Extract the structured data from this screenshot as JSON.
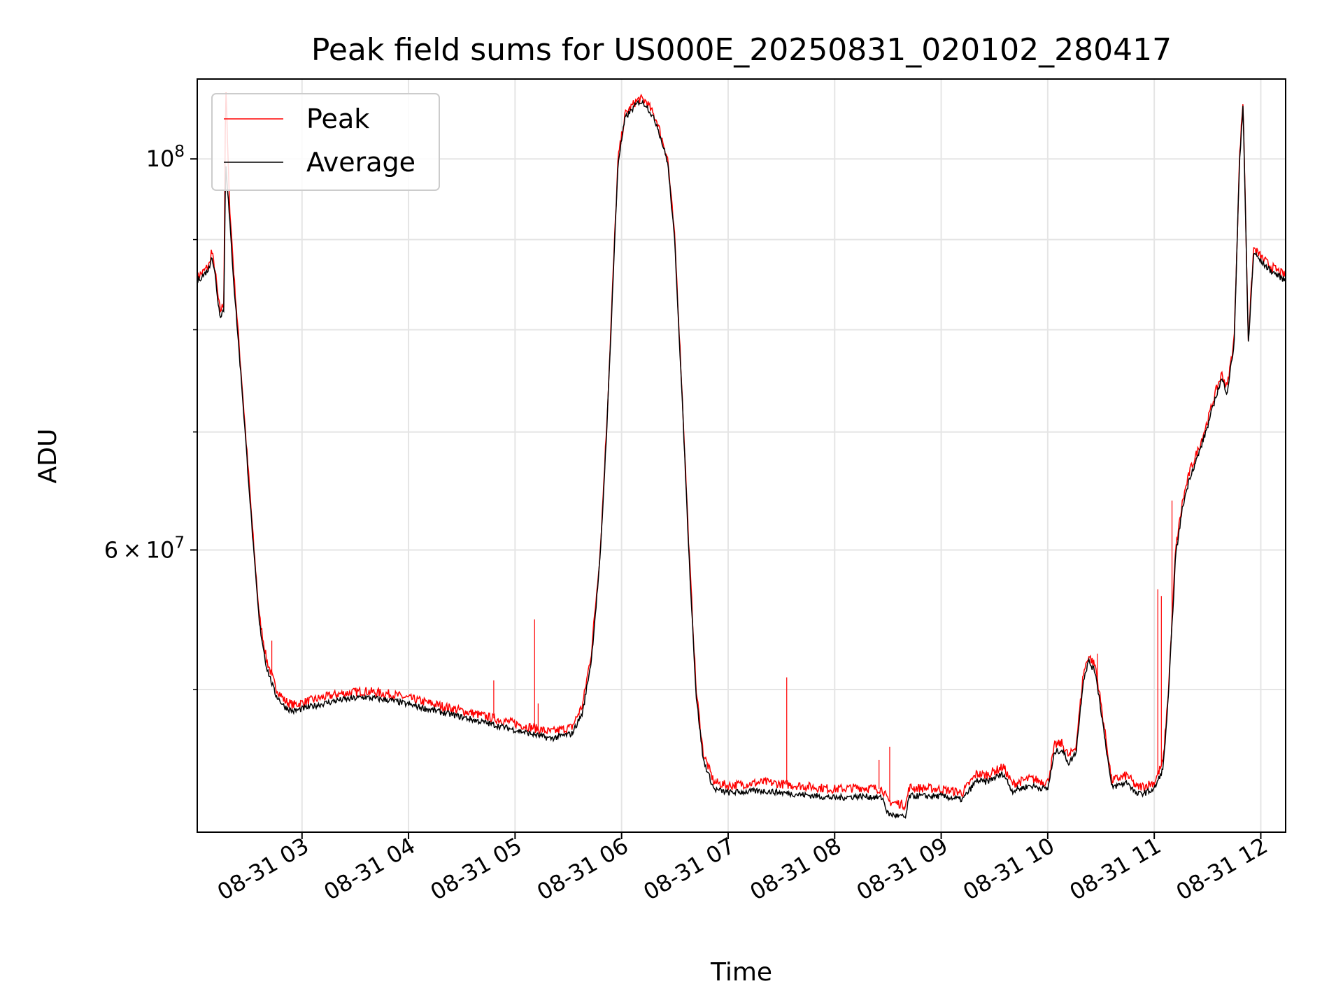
{
  "chart_data": {
    "type": "line",
    "title": "Peak field sums for US000E_20250831_020102_280417",
    "xlabel": "Time",
    "ylabel": "ADU",
    "yscale": "log",
    "ylim": [
      41500000,
      111000000
    ],
    "xlim": [
      "2025-08-31 02:01",
      "2025-08-31 12:14"
    ],
    "grid": true,
    "legend_position": "upper left",
    "x_ticks": [
      {
        "t": "2025-08-31 03:00",
        "label": "08-31 03"
      },
      {
        "t": "2025-08-31 04:00",
        "label": "08-31 04"
      },
      {
        "t": "2025-08-31 05:00",
        "label": "08-31 05"
      },
      {
        "t": "2025-08-31 06:00",
        "label": "08-31 06"
      },
      {
        "t": "2025-08-31 07:00",
        "label": "08-31 07"
      },
      {
        "t": "2025-08-31 08:00",
        "label": "08-31 08"
      },
      {
        "t": "2025-08-31 09:00",
        "label": "08-31 09"
      },
      {
        "t": "2025-08-31 10:00",
        "label": "08-31 10"
      },
      {
        "t": "2025-08-31 11:00",
        "label": "08-31 11"
      },
      {
        "t": "2025-08-31 12:00",
        "label": "08-31 12"
      }
    ],
    "y_ticks": [
      {
        "value": 60000000,
        "mant": "6",
        "times": "×",
        "base": "10",
        "exp": "7"
      },
      {
        "value": 100000000,
        "mant": "",
        "times": "",
        "base": "10",
        "exp": "8"
      }
    ],
    "y_minor_ticks": [
      50000000,
      70000000,
      80000000,
      90000000
    ],
    "series": [
      {
        "name": "Peak",
        "color": "#ff0000",
        "points": [
          [
            "2025-08-31 02:01",
            85700000
          ],
          [
            "2025-08-31 02:05",
            86400000
          ],
          [
            "2025-08-31 02:08",
            87200000
          ],
          [
            "2025-08-31 02:09",
            88800000
          ],
          [
            "2025-08-31 02:11",
            86500000
          ],
          [
            "2025-08-31 02:13",
            83000000
          ],
          [
            "2025-08-31 02:14",
            82000000
          ],
          [
            "2025-08-31 02:16",
            82800000
          ],
          [
            "2025-08-31 02:17",
            111000000
          ],
          [
            "2025-08-31 02:19",
            95000000
          ],
          [
            "2025-08-31 02:22",
            85000000
          ],
          [
            "2025-08-31 02:26",
            75000000
          ],
          [
            "2025-08-31 02:30",
            66000000
          ],
          [
            "2025-08-31 02:33",
            60000000
          ],
          [
            "2025-08-31 02:36",
            55000000
          ],
          [
            "2025-08-31 02:40",
            52000000
          ],
          [
            "2025-08-31 02:45",
            50200000
          ],
          [
            "2025-08-31 02:50",
            49300000
          ],
          [
            "2025-08-31 02:55",
            49000000
          ],
          [
            "2025-08-31 03:05",
            49300000
          ],
          [
            "2025-08-31 03:20",
            49700000
          ],
          [
            "2025-08-31 03:35",
            49900000
          ],
          [
            "2025-08-31 03:50",
            49700000
          ],
          [
            "2025-08-31 04:05",
            49300000
          ],
          [
            "2025-08-31 04:20",
            48900000
          ],
          [
            "2025-08-31 04:35",
            48500000
          ],
          [
            "2025-08-31 04:50",
            48100000
          ],
          [
            "2025-08-31 05:05",
            47700000
          ],
          [
            "2025-08-31 05:20",
            47300000
          ],
          [
            "2025-08-31 05:32",
            47600000
          ],
          [
            "2025-08-31 05:38",
            49000000
          ],
          [
            "2025-08-31 05:43",
            52500000
          ],
          [
            "2025-08-31 05:48",
            60000000
          ],
          [
            "2025-08-31 05:52",
            72000000
          ],
          [
            "2025-08-31 05:55",
            85000000
          ],
          [
            "2025-08-31 05:58",
            100000000
          ],
          [
            "2025-08-31 06:02",
            106000000
          ],
          [
            "2025-08-31 06:07",
            107500000
          ],
          [
            "2025-08-31 06:10",
            108200000
          ],
          [
            "2025-08-31 06:14",
            107800000
          ],
          [
            "2025-08-31 06:20",
            105000000
          ],
          [
            "2025-08-31 06:26",
            100000000
          ],
          [
            "2025-08-31 06:30",
            90000000
          ],
          [
            "2025-08-31 06:34",
            74000000
          ],
          [
            "2025-08-31 06:38",
            60000000
          ],
          [
            "2025-08-31 06:42",
            50000000
          ],
          [
            "2025-08-31 06:46",
            46000000
          ],
          [
            "2025-08-31 06:52",
            44300000
          ],
          [
            "2025-08-31 07:00",
            44100000
          ],
          [
            "2025-08-31 07:20",
            44300000
          ],
          [
            "2025-08-31 07:40",
            44100000
          ],
          [
            "2025-08-31 08:00",
            43900000
          ],
          [
            "2025-08-31 08:15",
            44000000
          ],
          [
            "2025-08-31 08:27",
            43900000
          ],
          [
            "2025-08-31 08:30",
            43200000
          ],
          [
            "2025-08-31 08:40",
            43000000
          ],
          [
            "2025-08-31 08:42",
            44000000
          ],
          [
            "2025-08-31 09:00",
            43900000
          ],
          [
            "2025-08-31 09:12",
            43700000
          ],
          [
            "2025-08-31 09:20",
            44800000
          ],
          [
            "2025-08-31 09:25",
            44700000
          ],
          [
            "2025-08-31 09:35",
            45200000
          ],
          [
            "2025-08-31 09:40",
            44200000
          ],
          [
            "2025-08-31 09:50",
            44500000
          ],
          [
            "2025-08-31 10:00",
            44300000
          ],
          [
            "2025-08-31 10:04",
            46500000
          ],
          [
            "2025-08-31 10:08",
            46600000
          ],
          [
            "2025-08-31 10:12",
            45800000
          ],
          [
            "2025-08-31 10:16",
            46500000
          ],
          [
            "2025-08-31 10:20",
            51000000
          ],
          [
            "2025-08-31 10:23",
            52300000
          ],
          [
            "2025-08-31 10:27",
            51500000
          ],
          [
            "2025-08-31 10:32",
            47500000
          ],
          [
            "2025-08-31 10:36",
            44400000
          ],
          [
            "2025-08-31 10:45",
            44700000
          ],
          [
            "2025-08-31 10:50",
            44000000
          ],
          [
            "2025-08-31 10:55",
            44100000
          ],
          [
            "2025-08-31 11:00",
            44300000
          ],
          [
            "2025-08-31 11:05",
            45500000
          ],
          [
            "2025-08-31 11:08",
            50000000
          ],
          [
            "2025-08-31 11:12",
            60000000
          ],
          [
            "2025-08-31 11:16",
            64000000
          ],
          [
            "2025-08-31 11:20",
            66500000
          ],
          [
            "2025-08-31 11:25",
            68500000
          ],
          [
            "2025-08-31 11:30",
            71000000
          ],
          [
            "2025-08-31 11:35",
            74000000
          ],
          [
            "2025-08-31 11:38",
            75500000
          ],
          [
            "2025-08-31 11:41",
            74200000
          ],
          [
            "2025-08-31 11:45",
            79000000
          ],
          [
            "2025-08-31 11:48",
            100000000
          ],
          [
            "2025-08-31 11:50",
            108000000
          ],
          [
            "2025-08-31 11:53",
            79000000
          ],
          [
            "2025-08-31 11:56",
            89000000
          ],
          [
            "2025-08-31 12:00",
            88000000
          ],
          [
            "2025-08-31 12:05",
            87000000
          ],
          [
            "2025-08-31 12:14",
            85800000
          ]
        ],
        "spikes": [
          [
            "2025-08-31 02:17",
            111000000
          ],
          [
            "2025-08-31 02:43",
            53300000
          ],
          [
            "2025-08-31 04:48",
            50600000
          ],
          [
            "2025-08-31 05:11",
            54800000
          ],
          [
            "2025-08-31 05:13",
            49100000
          ],
          [
            "2025-08-31 07:33",
            50800000
          ],
          [
            "2025-08-31 08:25",
            45600000
          ],
          [
            "2025-08-31 08:31",
            46400000
          ],
          [
            "2025-08-31 10:28",
            52400000
          ],
          [
            "2025-08-31 11:02",
            57000000
          ],
          [
            "2025-08-31 11:04",
            56500000
          ],
          [
            "2025-08-31 11:10",
            64000000
          ]
        ]
      },
      {
        "name": "Average",
        "color": "#000000",
        "points": [
          [
            "2025-08-31 02:01",
            85300000
          ],
          [
            "2025-08-31 02:05",
            86000000
          ],
          [
            "2025-08-31 02:08",
            86800000
          ],
          [
            "2025-08-31 02:09",
            88400000
          ],
          [
            "2025-08-31 02:11",
            86000000
          ],
          [
            "2025-08-31 02:13",
            82500000
          ],
          [
            "2025-08-31 02:14",
            81500000
          ],
          [
            "2025-08-31 02:16",
            82200000
          ],
          [
            "2025-08-31 02:17",
            100000000
          ],
          [
            "2025-08-31 02:19",
            93000000
          ],
          [
            "2025-08-31 02:22",
            84000000
          ],
          [
            "2025-08-31 02:26",
            74500000
          ],
          [
            "2025-08-31 02:30",
            65500000
          ],
          [
            "2025-08-31 02:33",
            59500000
          ],
          [
            "2025-08-31 02:36",
            54500000
          ],
          [
            "2025-08-31 02:40",
            51500000
          ],
          [
            "2025-08-31 02:45",
            49700000
          ],
          [
            "2025-08-31 02:50",
            48900000
          ],
          [
            "2025-08-31 02:55",
            48600000
          ],
          [
            "2025-08-31 03:05",
            48900000
          ],
          [
            "2025-08-31 03:20",
            49300000
          ],
          [
            "2025-08-31 03:35",
            49500000
          ],
          [
            "2025-08-31 03:50",
            49300000
          ],
          [
            "2025-08-31 04:05",
            48900000
          ],
          [
            "2025-08-31 04:20",
            48500000
          ],
          [
            "2025-08-31 04:35",
            48100000
          ],
          [
            "2025-08-31 04:50",
            47700000
          ],
          [
            "2025-08-31 05:05",
            47300000
          ],
          [
            "2025-08-31 05:20",
            46900000
          ],
          [
            "2025-08-31 05:32",
            47200000
          ],
          [
            "2025-08-31 05:38",
            48500000
          ],
          [
            "2025-08-31 05:43",
            52000000
          ],
          [
            "2025-08-31 05:48",
            59500000
          ],
          [
            "2025-08-31 05:52",
            71500000
          ],
          [
            "2025-08-31 05:55",
            84500000
          ],
          [
            "2025-08-31 05:58",
            99500000
          ],
          [
            "2025-08-31 06:02",
            105500000
          ],
          [
            "2025-08-31 06:07",
            107000000
          ],
          [
            "2025-08-31 06:10",
            107800000
          ],
          [
            "2025-08-31 06:14",
            107300000
          ],
          [
            "2025-08-31 06:20",
            104500000
          ],
          [
            "2025-08-31 06:26",
            99500000
          ],
          [
            "2025-08-31 06:30",
            89500000
          ],
          [
            "2025-08-31 06:34",
            73500000
          ],
          [
            "2025-08-31 06:38",
            59500000
          ],
          [
            "2025-08-31 06:42",
            49600000
          ],
          [
            "2025-08-31 06:46",
            45600000
          ],
          [
            "2025-08-31 06:52",
            43900000
          ],
          [
            "2025-08-31 07:00",
            43700000
          ],
          [
            "2025-08-31 07:20",
            43800000
          ],
          [
            "2025-08-31 07:40",
            43600000
          ],
          [
            "2025-08-31 08:00",
            43400000
          ],
          [
            "2025-08-31 08:15",
            43500000
          ],
          [
            "2025-08-31 08:27",
            43400000
          ],
          [
            "2025-08-31 08:30",
            42500000
          ],
          [
            "2025-08-31 08:40",
            42300000
          ],
          [
            "2025-08-31 08:42",
            43500000
          ],
          [
            "2025-08-31 09:00",
            43500000
          ],
          [
            "2025-08-31 09:12",
            43300000
          ],
          [
            "2025-08-31 09:20",
            44400000
          ],
          [
            "2025-08-31 09:25",
            44300000
          ],
          [
            "2025-08-31 09:35",
            44800000
          ],
          [
            "2025-08-31 09:40",
            43800000
          ],
          [
            "2025-08-31 09:50",
            44100000
          ],
          [
            "2025-08-31 10:00",
            43900000
          ],
          [
            "2025-08-31 10:04",
            46100000
          ],
          [
            "2025-08-31 10:08",
            46200000
          ],
          [
            "2025-08-31 10:12",
            45400000
          ],
          [
            "2025-08-31 10:16",
            46100000
          ],
          [
            "2025-08-31 10:20",
            50600000
          ],
          [
            "2025-08-31 10:23",
            51900000
          ],
          [
            "2025-08-31 10:27",
            51100000
          ],
          [
            "2025-08-31 10:32",
            47100000
          ],
          [
            "2025-08-31 10:36",
            44000000
          ],
          [
            "2025-08-31 10:45",
            44300000
          ],
          [
            "2025-08-31 10:50",
            43600000
          ],
          [
            "2025-08-31 10:55",
            43700000
          ],
          [
            "2025-08-31 11:00",
            43900000
          ],
          [
            "2025-08-31 11:05",
            45100000
          ],
          [
            "2025-08-31 11:08",
            49600000
          ],
          [
            "2025-08-31 11:12",
            59500000
          ],
          [
            "2025-08-31 11:16",
            63500000
          ],
          [
            "2025-08-31 11:20",
            66000000
          ],
          [
            "2025-08-31 11:25",
            68000000
          ],
          [
            "2025-08-31 11:30",
            70500000
          ],
          [
            "2025-08-31 11:35",
            73500000
          ],
          [
            "2025-08-31 11:38",
            75000000
          ],
          [
            "2025-08-31 11:41",
            73700000
          ],
          [
            "2025-08-31 11:45",
            78500000
          ],
          [
            "2025-08-31 11:48",
            99500000
          ],
          [
            "2025-08-31 11:50",
            107500000
          ],
          [
            "2025-08-31 11:53",
            78500000
          ],
          [
            "2025-08-31 11:56",
            88500000
          ],
          [
            "2025-08-31 12:00",
            87500000
          ],
          [
            "2025-08-31 12:05",
            86500000
          ],
          [
            "2025-08-31 12:14",
            85300000
          ]
        ]
      }
    ]
  }
}
